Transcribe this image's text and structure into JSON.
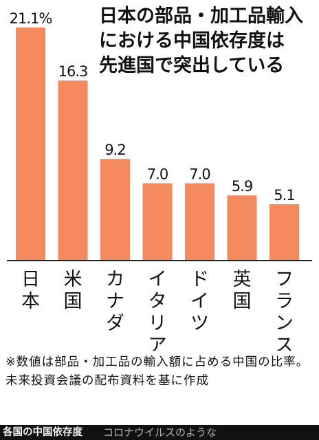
{
  "title_lines": [
    "日本の部品・加工品輸入",
    "における中国依存度は",
    "先進国で突出している"
  ],
  "note_text": "※数値は部品・加工品の輸入額に占める中国の比率。未来投資会議の配布資料を基に作成",
  "caption": "各国の中国依存度",
  "overlay_text": "コロナウイルスのような",
  "colors": {
    "bar": "#f48a5e",
    "axis": "#222222",
    "text": "#111111"
  },
  "chart_data": {
    "type": "bar",
    "categories": [
      "日本",
      "米国",
      "カナダ",
      "イタリア",
      "ドイツ",
      "英国",
      "フランス"
    ],
    "values": [
      21.1,
      16.3,
      9.2,
      7.0,
      7.0,
      5.9,
      5.1
    ],
    "value_labels": [
      "21.1%",
      "16.3",
      "9.2",
      "7.0",
      "7.0",
      "5.9",
      "5.1"
    ],
    "ylim": [
      0,
      21.1
    ],
    "grid": false,
    "legend": "none"
  }
}
